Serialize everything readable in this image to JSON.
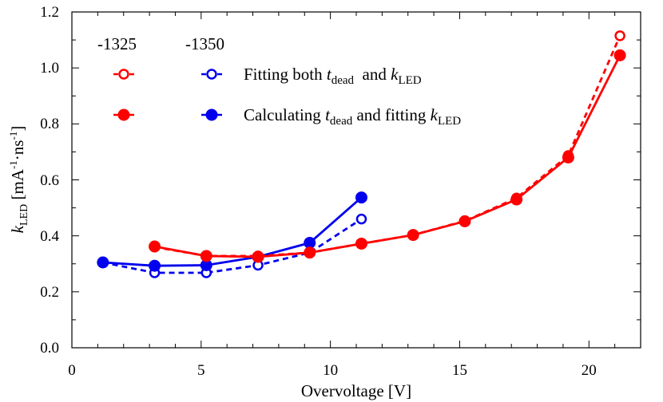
{
  "chart_data": {
    "type": "line",
    "xlabel": "Overvoltage  [V]",
    "ylabel": {
      "base": "k",
      "sub": "LED",
      "rest_prefix": " [mA",
      "sup1": "-1",
      "mid": "·ns",
      "sup2": "-1",
      "suffix": "]"
    },
    "xlim": [
      0,
      22
    ],
    "ylim": [
      0,
      1.2
    ],
    "xticks": [
      0,
      5,
      10,
      15,
      20
    ],
    "yticks": [
      0.0,
      0.2,
      0.4,
      0.6,
      0.8,
      1.0,
      1.2
    ],
    "xtick_labels": [
      "0",
      "5",
      "10",
      "15",
      "20"
    ],
    "ytick_labels": [
      "0.0",
      "0.2",
      "0.4",
      "0.6",
      "0.8",
      "1.0",
      "1.2"
    ],
    "series": [
      {
        "name": "-1350 fitting both",
        "color": "#0000ee",
        "style": "dashed",
        "marker": "open",
        "x": [
          1.2,
          3.2,
          5.2,
          7.2,
          9.2,
          11.2
        ],
        "y": [
          0.305,
          0.268,
          0.268,
          0.295,
          0.34,
          0.46
        ]
      },
      {
        "name": "-1350 calculating",
        "color": "#0000ee",
        "style": "solid",
        "marker": "filled",
        "x": [
          1.2,
          3.2,
          5.2,
          7.2,
          9.2,
          11.2
        ],
        "y": [
          0.305,
          0.293,
          0.295,
          0.325,
          0.375,
          0.537
        ]
      },
      {
        "name": "-1325 fitting both",
        "color": "#ff0000",
        "style": "dashed",
        "marker": "open",
        "x": [
          3.2,
          5.2,
          7.2,
          9.2,
          11.2,
          13.2,
          15.2,
          17.2,
          19.2,
          21.2
        ],
        "y": [
          0.36,
          0.328,
          0.328,
          0.34,
          0.372,
          0.403,
          0.453,
          0.535,
          0.687,
          1.115
        ]
      },
      {
        "name": "-1325 calculating",
        "color": "#ff0000",
        "style": "solid",
        "marker": "filled",
        "x": [
          3.2,
          5.2,
          7.2,
          9.2,
          11.2,
          13.2,
          15.2,
          17.2,
          19.2,
          21.2
        ],
        "y": [
          0.362,
          0.328,
          0.325,
          0.34,
          0.372,
          0.403,
          0.452,
          0.53,
          0.68,
          1.045
        ]
      }
    ],
    "legend": {
      "header_red": "-1325",
      "header_blue": "-1350",
      "row1": {
        "prefix": "Fitting both ",
        "t": "t",
        "t_sub": "dead",
        "mid": "  and ",
        "k": "k",
        "k_sub": "LED"
      },
      "row2": {
        "prefix": "Calculating ",
        "t": "t",
        "t_sub": "dead",
        "mid": " and fitting ",
        "k": "k",
        "k_sub": "LED"
      }
    },
    "colors": {
      "red": "#ff0000",
      "blue": "#0000ee"
    }
  }
}
